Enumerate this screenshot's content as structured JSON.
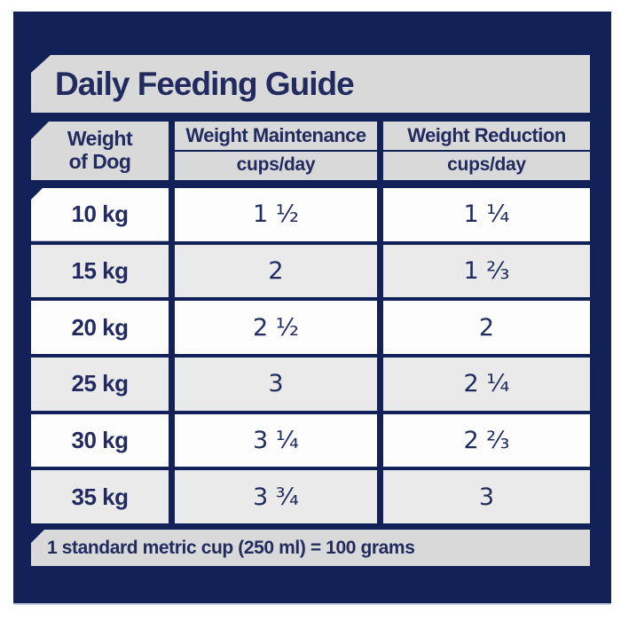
{
  "guide": {
    "title": "Daily Feeding Guide",
    "footnote": "1 standard metric cup (250 ml) = 100 grams"
  },
  "table": {
    "columns": [
      {
        "line1": "Weight",
        "line2": "of Dog"
      },
      {
        "label": "Weight Maintenance",
        "unit": "cups/day"
      },
      {
        "label": "Weight Reduction",
        "unit": "cups/day"
      }
    ],
    "rows": [
      {
        "weight": "10 kg",
        "maintenance": "1 ½",
        "reduction": "1 ¼"
      },
      {
        "weight": "15 kg",
        "maintenance": "2",
        "reduction": "1 ⅔"
      },
      {
        "weight": "20 kg",
        "maintenance": "2 ½",
        "reduction": "2"
      },
      {
        "weight": "25 kg",
        "maintenance": "3",
        "reduction": "2 ¼"
      },
      {
        "weight": "30 kg",
        "maintenance": "3 ¼",
        "reduction": "2 ⅔"
      },
      {
        "weight": "35 kg",
        "maintenance": "3 ¾",
        "reduction": "3"
      }
    ]
  },
  "colors": {
    "panel_navy": "#122157",
    "text_navy": "#222B60",
    "block_gray": "#D8D9D8",
    "row_gray": "#E9EAE9",
    "row_white": "#FDFDFE"
  }
}
